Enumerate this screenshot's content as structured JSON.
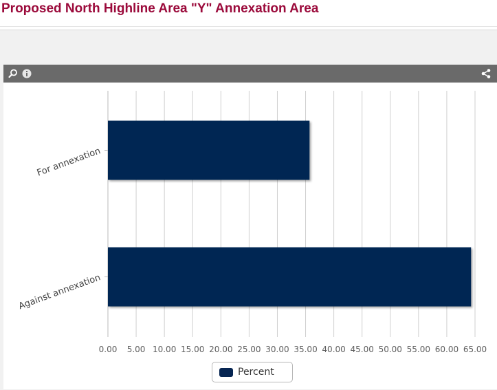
{
  "page": {
    "title": "Proposed North Highline Area \"Y\" Annexation Area"
  },
  "toolbar": {
    "left_icons": [
      "zoom-icon",
      "info-icon"
    ],
    "right_icons": [
      "share-icon"
    ]
  },
  "colors": {
    "title": "#9b0a3b",
    "bar": "#062552",
    "grid": "#cfcfcf",
    "toolbar": "#6a6a6a"
  },
  "chart_data": {
    "type": "bar",
    "orientation": "horizontal",
    "categories": [
      "For annexation",
      "Against annexation"
    ],
    "series": [
      {
        "name": "Percent",
        "values": [
          35.7,
          64.3
        ]
      }
    ],
    "x_ticks": [
      "0.00",
      "5.00",
      "10.00",
      "15.00",
      "20.00",
      "25.00",
      "30.00",
      "35.00",
      "40.00",
      "45.00",
      "50.00",
      "55.00",
      "60.00",
      "65.00"
    ],
    "xlim": [
      0,
      65
    ],
    "grid": true,
    "legend_position": "bottom-center"
  }
}
